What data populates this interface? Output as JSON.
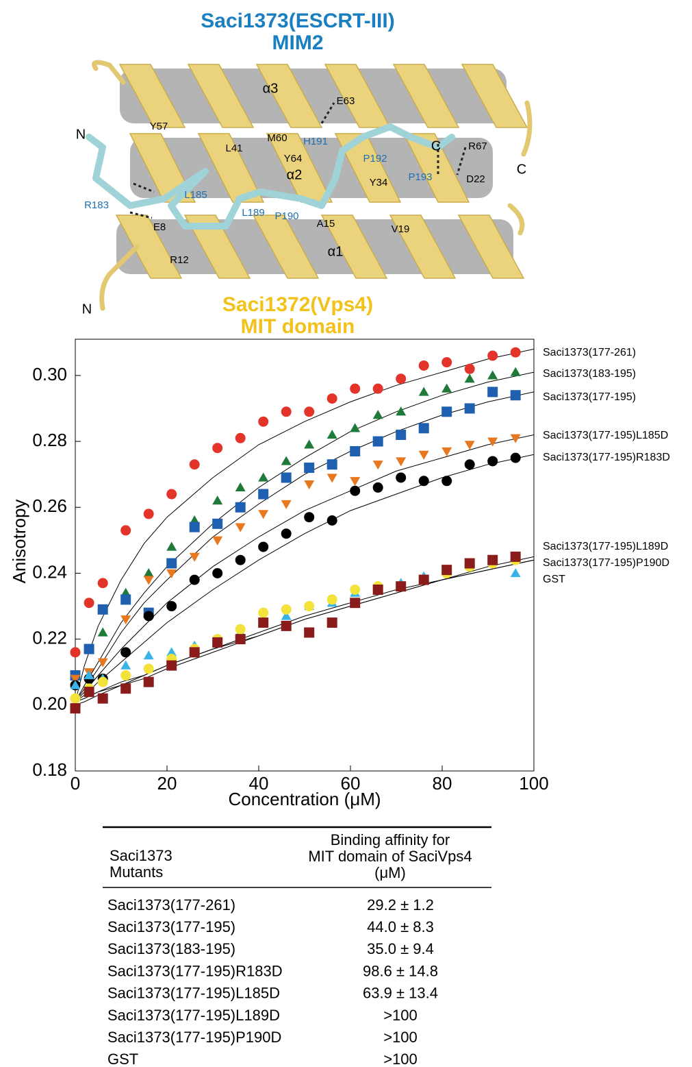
{
  "structure": {
    "title": [
      "Saci1373(ESCRT-III)",
      "MIM2"
    ],
    "subtitle": [
      "Saci1372(Vps4)",
      "MIT domain"
    ],
    "residues": [
      "α3",
      "E63",
      "Y57",
      "M60",
      "L41",
      "Y64",
      "α2",
      "Y34",
      "R67",
      "D22",
      "A15",
      "V19",
      "E8",
      "R12",
      "α1",
      "N",
      "N",
      "C",
      "C"
    ],
    "peptide_residues": [
      "H191",
      "P192",
      "P193",
      "L185",
      "L189",
      "P190",
      "R183"
    ]
  },
  "chart_data": {
    "type": "scatter",
    "xlabel": "Concentration (μM)",
    "ylabel": "Anisotropy",
    "xlim": [
      0,
      100
    ],
    "ylim": [
      0.18,
      0.311
    ],
    "xticks": [
      0,
      20,
      40,
      60,
      80,
      100
    ],
    "yticks": [
      {
        "value": 0.18,
        "label": "0.18"
      },
      {
        "value": 0.2,
        "label": "0.20"
      },
      {
        "value": 0.22,
        "label": "0.22"
      },
      {
        "value": 0.24,
        "label": "0.24"
      },
      {
        "value": 0.26,
        "label": "0.26"
      },
      {
        "value": 0.28,
        "label": "0.28"
      },
      {
        "value": 0.3,
        "label": "0.30"
      }
    ],
    "x": [
      0,
      3,
      6,
      11,
      16,
      21,
      26,
      31,
      36,
      41,
      46,
      51,
      56,
      61,
      66,
      71,
      76,
      81,
      86,
      91,
      96
    ],
    "fit_x": [
      0,
      2,
      5,
      10,
      15,
      20,
      30,
      40,
      50,
      60,
      70,
      80,
      90,
      100
    ],
    "series": [
      {
        "name": "Saci1373(177-261)",
        "color": "#e3342a",
        "marker": "circle",
        "values": [
          0.216,
          0.231,
          0.237,
          0.253,
          0.258,
          0.264,
          0.273,
          0.278,
          0.281,
          0.286,
          0.289,
          0.289,
          0.293,
          0.296,
          0.296,
          0.299,
          0.303,
          0.304,
          0.302,
          0.306,
          0.307
        ],
        "fit": [
          0.201,
          0.212,
          0.224,
          0.238,
          0.249,
          0.257,
          0.269,
          0.279,
          0.286,
          0.292,
          0.297,
          0.301,
          0.305,
          0.308
        ]
      },
      {
        "name": "Saci1373(183-195)",
        "color": "#1f7a3a",
        "marker": "triangle",
        "values": [
          0.209,
          0.217,
          0.222,
          0.234,
          0.24,
          0.248,
          0.256,
          0.262,
          0.266,
          0.269,
          0.274,
          0.279,
          0.282,
          0.284,
          0.288,
          0.289,
          0.295,
          0.296,
          0.299,
          0.3,
          0.301
        ],
        "fit": [
          0.201,
          0.206,
          0.213,
          0.225,
          0.234,
          0.242,
          0.255,
          0.266,
          0.275,
          0.283,
          0.289,
          0.294,
          0.298,
          0.301
        ]
      },
      {
        "name": "Saci1373(177-195)",
        "color": "#1f5fb0",
        "marker": "square",
        "values": [
          0.209,
          0.217,
          0.229,
          0.232,
          0.228,
          0.243,
          0.254,
          0.255,
          0.26,
          0.264,
          0.269,
          0.272,
          0.273,
          0.277,
          0.28,
          0.282,
          0.284,
          0.289,
          0.29,
          0.295,
          0.294
        ],
        "fit": [
          0.201,
          0.205,
          0.211,
          0.222,
          0.231,
          0.238,
          0.251,
          0.261,
          0.27,
          0.277,
          0.283,
          0.288,
          0.292,
          0.295
        ]
      },
      {
        "name": "Saci1373(177-195)L185D",
        "color": "#e8781e",
        "marker": "triangle-down",
        "values": [
          0.208,
          0.21,
          0.213,
          0.226,
          0.238,
          0.24,
          0.245,
          0.25,
          0.254,
          0.258,
          0.261,
          0.267,
          0.269,
          0.268,
          0.273,
          0.274,
          0.276,
          0.277,
          0.279,
          0.28,
          0.281
        ],
        "fit": [
          0.201,
          0.204,
          0.209,
          0.217,
          0.224,
          0.231,
          0.242,
          0.251,
          0.259,
          0.265,
          0.271,
          0.275,
          0.279,
          0.282
        ]
      },
      {
        "name": "Saci1373(177-195)R183D",
        "color": "#000000",
        "marker": "circle",
        "values": [
          0.206,
          0.208,
          0.208,
          0.216,
          0.227,
          0.23,
          0.238,
          0.24,
          0.244,
          0.248,
          0.252,
          0.257,
          0.256,
          0.265,
          0.266,
          0.269,
          0.268,
          0.268,
          0.273,
          0.274,
          0.275
        ],
        "fit": [
          0.201,
          0.203,
          0.207,
          0.213,
          0.219,
          0.225,
          0.235,
          0.244,
          0.252,
          0.259,
          0.264,
          0.269,
          0.273,
          0.276
        ]
      },
      {
        "name": "Saci1373(177-195)L189D",
        "color": "#3ab4e6",
        "marker": "triangle",
        "values": [
          0.206,
          0.209,
          0.208,
          0.212,
          0.215,
          0.216,
          0.218,
          0.219,
          0.222,
          0.225,
          0.227,
          0.23,
          0.231,
          0.234,
          0.236,
          0.237,
          0.239,
          0.241,
          0.243,
          0.244,
          0.24
        ],
        "fit": [
          0.201,
          0.202,
          0.204,
          0.207,
          0.209,
          0.212,
          0.217,
          0.222,
          0.227,
          0.231,
          0.235,
          0.238,
          0.242,
          0.245
        ]
      },
      {
        "name": "Saci1373(177-195)P190D",
        "color": "#f2e23a",
        "marker": "circle",
        "values": [
          0.202,
          0.205,
          0.207,
          0.209,
          0.211,
          0.214,
          0.217,
          0.22,
          0.223,
          0.228,
          0.229,
          0.23,
          0.232,
          0.235,
          0.236,
          0.236,
          0.238,
          0.24,
          0.242,
          0.243,
          0.244
        ],
        "fit": [
          0.201,
          0.202,
          0.204,
          0.206,
          0.209,
          0.212,
          0.217,
          0.221,
          0.226,
          0.23,
          0.234,
          0.238,
          0.241,
          0.244
        ]
      },
      {
        "name": "GST",
        "color": "#8b1c1c",
        "marker": "square",
        "values": [
          0.199,
          0.204,
          0.202,
          0.205,
          0.207,
          0.212,
          0.216,
          0.219,
          0.22,
          0.225,
          0.224,
          0.222,
          0.225,
          0.231,
          0.235,
          0.236,
          0.238,
          0.241,
          0.243,
          0.244,
          0.245
        ],
        "fit": [
          0.2,
          0.201,
          0.203,
          0.206,
          0.208,
          0.211,
          0.216,
          0.221,
          0.226,
          0.23,
          0.234,
          0.238,
          0.241,
          0.244
        ]
      }
    ]
  },
  "table": {
    "header": [
      [
        "Saci1373",
        "Mutants"
      ],
      [
        "Binding affinity for",
        "MIT domain of SaciVps4",
        "(μM)"
      ]
    ],
    "rows": [
      [
        "Saci1373(177-261)",
        "29.2 ± 1.2"
      ],
      [
        "Saci1373(177-195)",
        "44.0 ± 8.3"
      ],
      [
        "Saci1373(183-195)",
        "35.0 ± 9.4"
      ],
      [
        "Saci1373(177-195)R183D",
        "98.6 ± 14.8"
      ],
      [
        "Saci1373(177-195)L185D",
        "63.9 ± 13.4"
      ],
      [
        "Saci1373(177-195)L189D",
        ">100"
      ],
      [
        "Saci1373(177-195)P190D",
        ">100"
      ],
      [
        "GST",
        ">100"
      ]
    ]
  }
}
